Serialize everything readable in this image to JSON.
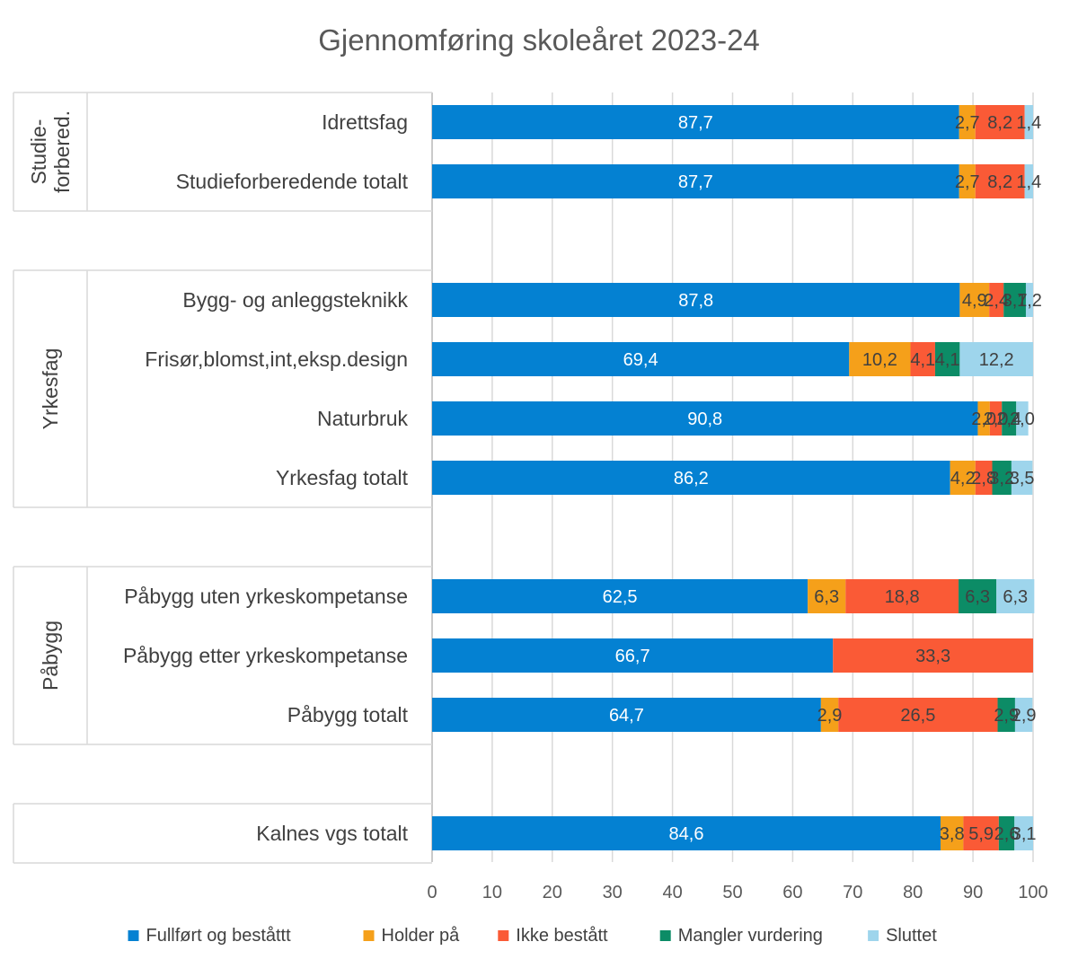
{
  "chart_data": {
    "type": "bar",
    "orientation": "horizontal",
    "stacked": true,
    "title": "Gjennomføring skoleåret 2023-24",
    "xlim": [
      0,
      100
    ],
    "xticks": [
      0,
      10,
      20,
      30,
      40,
      50,
      60,
      70,
      80,
      90,
      100
    ],
    "grid": true,
    "legend_position": "bottom",
    "groups": [
      {
        "name": "Studie-forbered.",
        "lines": [
          "Studie-",
          "forbered."
        ],
        "categories": [
          "Idrettsfag",
          "Studieforberedende totalt"
        ]
      },
      {
        "name": "Yrkesfag",
        "lines": [
          "Yrkesfag"
        ],
        "categories": [
          "Bygg- og anleggsteknikk",
          "Frisør,blomst,int,eksp.design",
          "Naturbruk",
          "Yrkesfag totalt"
        ]
      },
      {
        "name": "Påbygg",
        "lines": [
          "Påbygg"
        ],
        "categories": [
          "Påbygg uten yrkeskompetanse",
          "Påbygg etter yrkeskompetanse",
          "Påbygg totalt"
        ]
      },
      {
        "name": "",
        "lines": [],
        "categories": [
          "Kalnes vgs totalt"
        ]
      }
    ],
    "categories": [
      "Idrettsfag",
      "Studieforberedende totalt",
      "Bygg- og anleggsteknikk",
      "Frisør,blomst,int,eksp.design",
      "Naturbruk",
      "Yrkesfag totalt",
      "Påbygg uten yrkeskompetanse",
      "Påbygg etter yrkeskompetanse",
      "Påbygg totalt",
      "Kalnes vgs totalt"
    ],
    "series": [
      {
        "name": "Fullført og beståttt",
        "color": "#0481D2",
        "label_color": "#ffffff",
        "values": [
          87.7,
          87.7,
          87.8,
          69.4,
          90.8,
          86.2,
          62.5,
          66.7,
          64.7,
          84.6
        ],
        "labels": [
          "87,7",
          "87,7",
          "87,8",
          "69,4",
          "90,8",
          "86,2",
          "62,5",
          "66,7",
          "64,7",
          "84,6"
        ]
      },
      {
        "name": "Holder på",
        "color": "#F5A01A",
        "label_color": "#404040",
        "values": [
          2.7,
          2.7,
          4.9,
          10.2,
          2.0,
          4.2,
          6.3,
          0,
          2.9,
          3.8
        ],
        "labels": [
          "2,7",
          "2,7",
          "4,9",
          "10,2",
          "2,0",
          "4,2",
          "6,3",
          "",
          "2,9",
          "3,8"
        ]
      },
      {
        "name": "Ikke bestått",
        "color": "#FA5A36",
        "label_color": "#404040",
        "values": [
          8.2,
          8.2,
          2.4,
          4.1,
          2.0,
          2.8,
          18.8,
          33.3,
          26.5,
          5.9
        ],
        "labels": [
          "8,2",
          "8,2",
          "2,4",
          "4,1",
          "2,0",
          "2,8",
          "18,8",
          "33,3",
          "26,5",
          "5,9"
        ]
      },
      {
        "name": "Mangler vurdering",
        "color": "#0C8C66",
        "label_color": "#404040",
        "values": [
          0,
          0,
          3.7,
          4.1,
          2.4,
          3.2,
          6.3,
          0,
          2.9,
          2.6
        ],
        "labels": [
          "",
          "",
          "3,7",
          "4,1",
          "2,4",
          "3,2",
          "6,3",
          "",
          "2,9",
          "2,6"
        ]
      },
      {
        "name": "Sluttet",
        "color": "#9ED5EC",
        "label_color": "#404040",
        "values": [
          1.4,
          1.4,
          1.2,
          12.2,
          2.0,
          3.5,
          6.3,
          0,
          2.9,
          3.1
        ],
        "labels": [
          "1,4",
          "1,4",
          "1,2",
          "12,2",
          "2,0",
          "3,5",
          "6,3",
          "",
          "2,9",
          "3,1"
        ]
      }
    ]
  }
}
